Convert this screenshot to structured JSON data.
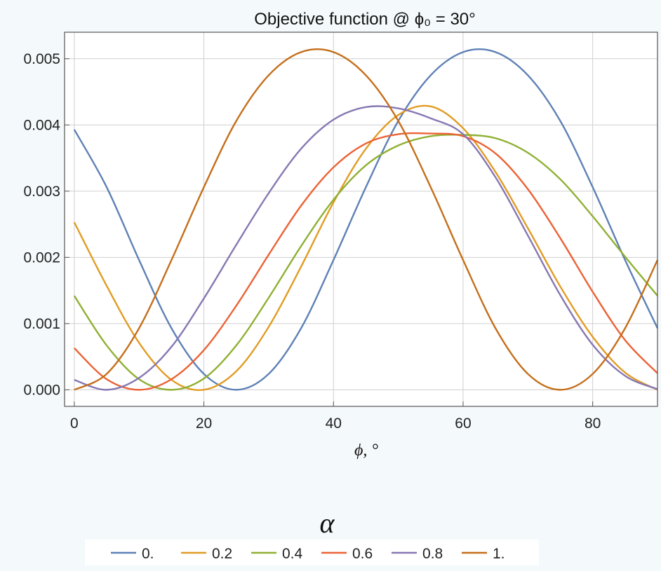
{
  "chart_data": {
    "type": "line",
    "title": "Objective function @ ϕ₀ = 30°",
    "xlabel": "ϕ, °",
    "ylabel": "",
    "xlim": [
      -1.5,
      90
    ],
    "ylim": [
      -0.00025,
      0.0054
    ],
    "x_ticks": [
      "0",
      "20",
      "40",
      "60",
      "80"
    ],
    "x_tick_values": [
      0,
      20,
      40,
      60,
      80
    ],
    "y_ticks": [
      "0.000",
      "0.001",
      "0.002",
      "0.003",
      "0.004",
      "0.005"
    ],
    "y_tick_values": [
      0,
      0.001,
      0.002,
      0.003,
      0.004,
      0.005
    ],
    "grid": true,
    "legend_title": "α",
    "legend_position": "bottom",
    "x": [
      0,
      5,
      10,
      15,
      20,
      25,
      30,
      35,
      40,
      45,
      50,
      55,
      60,
      65,
      70,
      75,
      80,
      85,
      90
    ],
    "series": [
      {
        "name": "0.",
        "color": "#5e81b5",
        "values": [
          0.00393,
          0.00306,
          0.00196,
          0.00093,
          0.00024,
          0.0,
          0.00024,
          0.00093,
          0.00196,
          0.00306,
          0.00406,
          0.00475,
          0.0051,
          0.0051,
          0.00475,
          0.00406,
          0.00306,
          0.00196,
          0.00093
        ]
      },
      {
        "name": "0.2",
        "color": "#e19c24",
        "values": [
          0.00253,
          0.00157,
          0.00071,
          0.00015,
          0.0,
          0.00028,
          0.00095,
          0.00186,
          0.00283,
          0.00364,
          0.00415,
          0.00428,
          0.00395,
          0.00329,
          0.00244,
          0.00156,
          0.0008,
          0.00026,
          0.0
        ]
      },
      {
        "name": "0.4",
        "color": "#8fb032",
        "values": [
          0.00142,
          0.00067,
          0.00016,
          0.0,
          0.00017,
          0.00067,
          0.00139,
          0.00217,
          0.00287,
          0.00339,
          0.00369,
          0.00383,
          0.00385,
          0.0038,
          0.00358,
          0.00318,
          0.00262,
          0.00201,
          0.00142
        ]
      },
      {
        "name": "0.6",
        "color": "#eb6235",
        "values": [
          0.00063,
          0.00016,
          0.0,
          0.00016,
          0.0006,
          0.00127,
          0.00204,
          0.00278,
          0.00336,
          0.00372,
          0.00386,
          0.00387,
          0.00383,
          0.00357,
          0.00303,
          0.00229,
          0.00148,
          0.00075,
          0.00025
        ]
      },
      {
        "name": "0.8",
        "color": "#8778b3",
        "values": [
          0.00015,
          0.0,
          0.00018,
          0.00065,
          0.00138,
          0.00219,
          0.00297,
          0.00364,
          0.00408,
          0.00427,
          0.00425,
          0.0041,
          0.00386,
          0.00321,
          0.00233,
          0.00143,
          0.00068,
          0.00021,
          1e-05
        ]
      },
      {
        "name": "1.",
        "color": "#c56e1a",
        "values": [
          0.0,
          0.00024,
          0.00093,
          0.00196,
          0.00306,
          0.00406,
          0.00475,
          0.0051,
          0.0051,
          0.00475,
          0.00406,
          0.00306,
          0.00196,
          0.00093,
          0.00024,
          0.0,
          0.00024,
          0.00093,
          0.00196
        ]
      }
    ]
  }
}
